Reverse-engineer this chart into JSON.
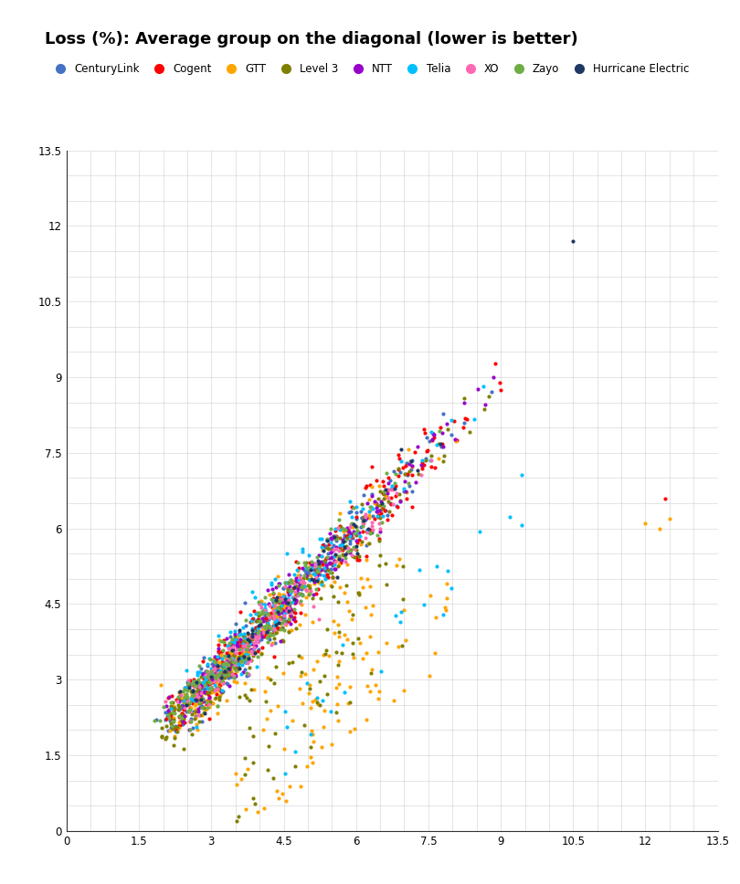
{
  "title": "Loss (%): Average group on the diagonal (lower is better)",
  "title_fontsize": 13,
  "title_fontweight": "bold",
  "xlim": [
    0,
    13.5
  ],
  "ylim": [
    0,
    13.5
  ],
  "xticks": [
    0,
    1.5,
    3,
    4.5,
    6,
    7.5,
    9,
    10.5,
    12,
    13.5
  ],
  "yticks": [
    0,
    1.5,
    3,
    4.5,
    6,
    7.5,
    9,
    10.5,
    12,
    13.5
  ],
  "grid_color": "#d0d0d0",
  "background_color": "#ffffff",
  "providers": [
    {
      "name": "CenturyLink",
      "color": "#4472C4"
    },
    {
      "name": "Cogent",
      "color": "#FF0000"
    },
    {
      "name": "GTT",
      "color": "#FFA500"
    },
    {
      "name": "Level 3",
      "color": "#808000"
    },
    {
      "name": "NTT",
      "color": "#9900CC"
    },
    {
      "name": "Telia",
      "color": "#00BFFF"
    },
    {
      "name": "XO",
      "color": "#FF69B4"
    },
    {
      "name": "Zayo",
      "color": "#70AD47"
    },
    {
      "name": "Hurricane Electric",
      "color": "#1F3864"
    }
  ],
  "figsize": [
    8.1,
    9.68
  ],
  "dpi": 100,
  "marker_size": 9,
  "seed": 42
}
